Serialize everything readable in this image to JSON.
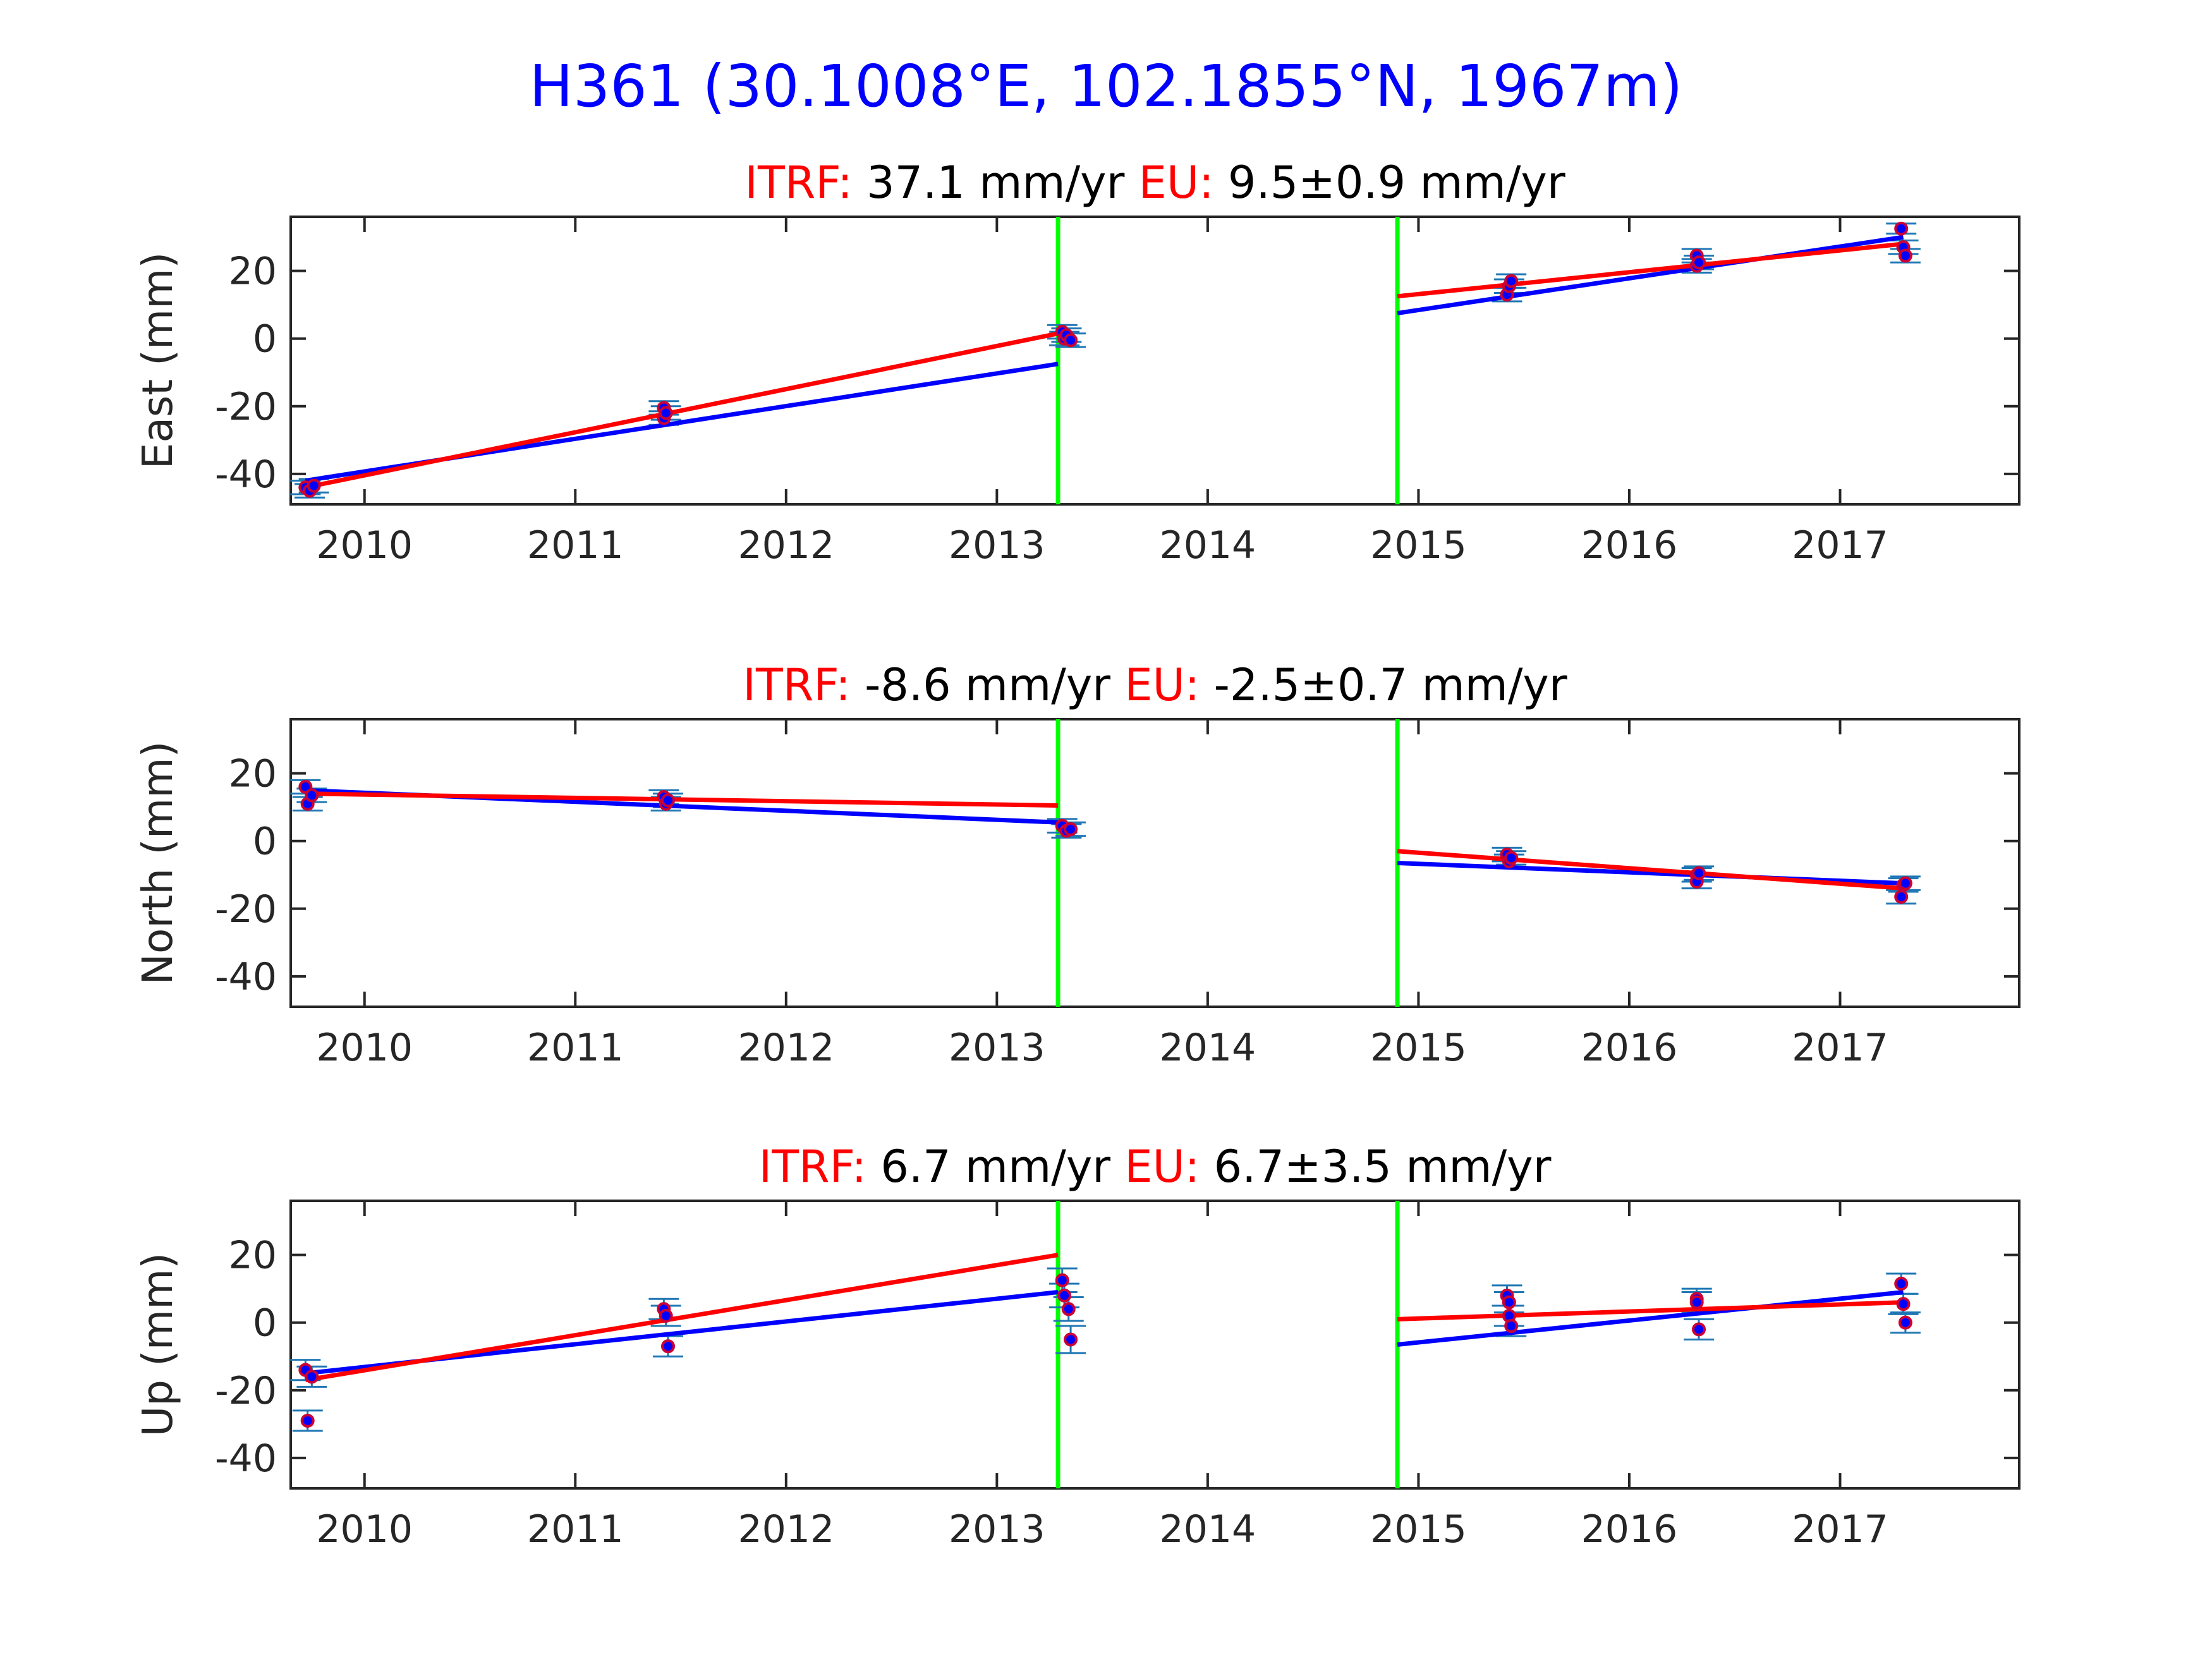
{
  "title": "H361 (30.1008°E, 102.1855°N, 1967m)",
  "colors": {
    "title": "#0000ff",
    "label_red": "#ff0000",
    "text": "#000000",
    "axis": "#262626",
    "blue_line": "#0000ff",
    "red_line": "#ff0000",
    "offset_line": "#00ff00",
    "error_bar": "#1f77b4",
    "point_fill": "#0000ff",
    "point_edge": "#cc0033"
  },
  "chart_data": [
    {
      "type": "scatter",
      "ylabel": "East (mm)",
      "subtitle": {
        "itrf_label": "ITRF:",
        "itrf_value": "37.1 mm/yr",
        "eu_label": "EU:",
        "eu_value": "9.5±0.9 mm/yr"
      },
      "xlim": [
        2009.65,
        2017.85
      ],
      "ylim": [
        -49,
        36
      ],
      "xticks": [
        2010,
        2011,
        2012,
        2013,
        2014,
        2015,
        2016,
        2017
      ],
      "yticks": [
        -40,
        -20,
        0,
        20
      ],
      "offsets": [
        2013.29,
        2014.9
      ],
      "points": [
        {
          "x": 2009.72,
          "y": -44,
          "err": 2
        },
        {
          "x": 2009.74,
          "y": -45,
          "err": 2
        },
        {
          "x": 2009.76,
          "y": -43.5,
          "err": 2
        },
        {
          "x": 2011.42,
          "y": -20.5,
          "err": 2
        },
        {
          "x": 2011.42,
          "y": -23.5,
          "err": 2
        },
        {
          "x": 2011.43,
          "y": -22,
          "err": 2
        },
        {
          "x": 2013.31,
          "y": 2,
          "err": 2
        },
        {
          "x": 2013.32,
          "y": 0,
          "err": 2
        },
        {
          "x": 2013.33,
          "y": 1,
          "err": 2
        },
        {
          "x": 2013.35,
          "y": -0.5,
          "err": 2
        },
        {
          "x": 2015.42,
          "y": 13,
          "err": 2
        },
        {
          "x": 2015.43,
          "y": 15.5,
          "err": 2
        },
        {
          "x": 2015.44,
          "y": 17,
          "err": 2
        },
        {
          "x": 2016.32,
          "y": 24.5,
          "err": 2
        },
        {
          "x": 2016.32,
          "y": 21.5,
          "err": 2
        },
        {
          "x": 2016.33,
          "y": 22.5,
          "err": 2
        },
        {
          "x": 2017.29,
          "y": 32.5,
          "err": 1.5
        },
        {
          "x": 2017.3,
          "y": 27,
          "err": 2
        },
        {
          "x": 2017.31,
          "y": 24.5,
          "err": 2
        }
      ],
      "blue_segments": [
        {
          "x": [
            2009.72,
            2013.29
          ],
          "y": [
            -42,
            -7.5
          ]
        },
        {
          "x": 2014.9,
          "x_end": 2017.3,
          "y": [
            7.5,
            30
          ]
        }
      ],
      "red_segments": [
        {
          "x": [
            2009.72,
            2013.29
          ],
          "y": [
            -44,
            1.5
          ]
        },
        {
          "x": [
            2014.9,
            2017.3
          ],
          "y": [
            12.5,
            28
          ]
        }
      ]
    },
    {
      "type": "scatter",
      "ylabel": "North (mm)",
      "subtitle": {
        "itrf_label": "ITRF:",
        "itrf_value": "-8.6 mm/yr",
        "eu_label": "EU:",
        "eu_value": "-2.5±0.7 mm/yr"
      },
      "xlim": [
        2009.65,
        2017.85
      ],
      "ylim": [
        -49,
        36
      ],
      "xticks": [
        2010,
        2011,
        2012,
        2013,
        2014,
        2015,
        2016,
        2017
      ],
      "yticks": [
        -40,
        -20,
        0,
        20
      ],
      "offsets": [
        2013.29,
        2014.9
      ],
      "points": [
        {
          "x": 2009.72,
          "y": 16,
          "err": 2
        },
        {
          "x": 2009.73,
          "y": 11,
          "err": 2
        },
        {
          "x": 2009.75,
          "y": 13.5,
          "err": 2
        },
        {
          "x": 2011.42,
          "y": 13,
          "err": 2
        },
        {
          "x": 2011.43,
          "y": 11,
          "err": 2
        },
        {
          "x": 2011.44,
          "y": 12,
          "err": 2
        },
        {
          "x": 2013.31,
          "y": 4.5,
          "err": 2
        },
        {
          "x": 2013.33,
          "y": 3,
          "err": 2
        },
        {
          "x": 2013.35,
          "y": 3.5,
          "err": 2
        },
        {
          "x": 2015.42,
          "y": -4,
          "err": 2
        },
        {
          "x": 2015.43,
          "y": -6,
          "err": 2
        },
        {
          "x": 2015.44,
          "y": -5,
          "err": 2
        },
        {
          "x": 2016.32,
          "y": -10,
          "err": 2
        },
        {
          "x": 2016.32,
          "y": -12,
          "err": 2
        },
        {
          "x": 2016.33,
          "y": -9.5,
          "err": 2
        },
        {
          "x": 2017.29,
          "y": -16.5,
          "err": 2
        },
        {
          "x": 2017.3,
          "y": -13,
          "err": 2
        },
        {
          "x": 2017.31,
          "y": -12.5,
          "err": 2
        }
      ],
      "blue_segments": [
        {
          "x": [
            2009.72,
            2013.29
          ],
          "y": [
            15,
            5.5
          ]
        },
        {
          "x": [
            2014.9,
            2017.3
          ],
          "y": [
            -6.5,
            -12.5
          ]
        }
      ],
      "red_segments": [
        {
          "x": [
            2009.72,
            2013.29
          ],
          "y": [
            14,
            10.5
          ]
        },
        {
          "x": [
            2014.9,
            2017.3
          ],
          "y": [
            -3,
            -14
          ]
        }
      ]
    },
    {
      "type": "scatter",
      "ylabel": "Up (mm)",
      "subtitle": {
        "itrf_label": "ITRF:",
        "itrf_value": "6.7 mm/yr",
        "eu_label": "EU:",
        "eu_value": "6.7±3.5 mm/yr"
      },
      "xlim": [
        2009.65,
        2017.85
      ],
      "ylim": [
        -49,
        36
      ],
      "xticks": [
        2010,
        2011,
        2012,
        2013,
        2014,
        2015,
        2016,
        2017
      ],
      "yticks": [
        -40,
        -20,
        0,
        20
      ],
      "offsets": [
        2013.29,
        2014.9
      ],
      "points": [
        {
          "x": 2009.72,
          "y": -14,
          "err": 3
        },
        {
          "x": 2009.73,
          "y": -29,
          "err": 3
        },
        {
          "x": 2009.75,
          "y": -16,
          "err": 3
        },
        {
          "x": 2011.42,
          "y": 4,
          "err": 3
        },
        {
          "x": 2011.43,
          "y": 2,
          "err": 3
        },
        {
          "x": 2011.44,
          "y": -7,
          "err": 3
        },
        {
          "x": 2013.31,
          "y": 12.5,
          "err": 3.5
        },
        {
          "x": 2013.32,
          "y": 8,
          "err": 3.5
        },
        {
          "x": 2013.34,
          "y": 4,
          "err": 3.5
        },
        {
          "x": 2013.35,
          "y": -5,
          "err": 4
        },
        {
          "x": 2015.42,
          "y": 8,
          "err": 3
        },
        {
          "x": 2015.43,
          "y": 6,
          "err": 3
        },
        {
          "x": 2015.43,
          "y": 2,
          "err": 3
        },
        {
          "x": 2015.44,
          "y": -1,
          "err": 3
        },
        {
          "x": 2016.32,
          "y": 7,
          "err": 3
        },
        {
          "x": 2016.32,
          "y": 6,
          "err": 3
        },
        {
          "x": 2016.33,
          "y": -2,
          "err": 3
        },
        {
          "x": 2017.29,
          "y": 11.5,
          "err": 3
        },
        {
          "x": 2017.3,
          "y": 5.5,
          "err": 3
        },
        {
          "x": 2017.31,
          "y": 0,
          "err": 3
        }
      ],
      "blue_segments": [
        {
          "x": [
            2009.72,
            2013.29
          ],
          "y": [
            -15,
            9
          ]
        },
        {
          "x": [
            2014.9,
            2017.3
          ],
          "y": [
            -6.5,
            9
          ]
        }
      ],
      "red_segments": [
        {
          "x": [
            2009.72,
            2013.29
          ],
          "y": [
            -17,
            20
          ]
        },
        {
          "x": [
            2014.9,
            2017.3
          ],
          "y": [
            1,
            6
          ]
        }
      ]
    }
  ]
}
